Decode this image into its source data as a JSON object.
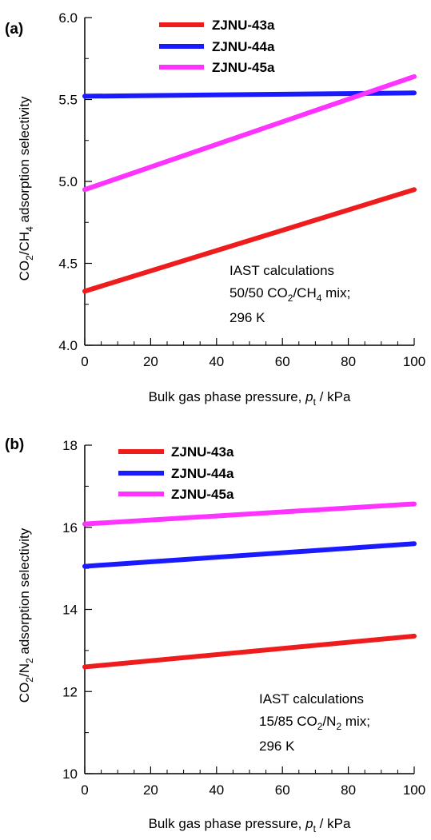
{
  "chart_data": [
    {
      "panel_label": "(a)",
      "type": "line",
      "xlabel": "Bulk gas phase pressure, p_t / kPa",
      "xlabel_parts": {
        "pre": "Bulk gas phase pressure, ",
        "var": "p",
        "sub": "t",
        "post": " / kPa"
      },
      "ylabel": "CO2/CH4 adsorption selectivity",
      "ylabel_parts": {
        "a": "CO",
        "a_sub": "2",
        "b": "/CH",
        "b_sub": "4",
        "c": " adsorption selectivity"
      },
      "xlim": [
        0,
        100
      ],
      "ylim": [
        4.0,
        6.0
      ],
      "xticks": [
        "0",
        "20",
        "40",
        "60",
        "80",
        "100"
      ],
      "yticks": [
        "4.0",
        "4.5",
        "5.0",
        "5.5",
        "6.0"
      ],
      "series": [
        {
          "name": "ZJNU-43a",
          "color": "#ee1c1c",
          "x": [
            0,
            100
          ],
          "y": [
            4.33,
            4.95
          ]
        },
        {
          "name": "ZJNU-44a",
          "color": "#1a1aff",
          "x": [
            0,
            100
          ],
          "y": [
            5.52,
            5.54
          ]
        },
        {
          "name": "ZJNU-45a",
          "color": "#ff33ff",
          "x": [
            0,
            100
          ],
          "y": [
            4.95,
            5.64
          ]
        }
      ],
      "annotation": {
        "line1": "IAST calculations",
        "line2_pre": "50/50 CO",
        "line2_sub1": "2",
        "line2_mid": "/CH",
        "line2_sub2": "4",
        "line2_post": " mix;",
        "line3": "296 K"
      },
      "legend_position": "top-center"
    },
    {
      "panel_label": "(b)",
      "type": "line",
      "xlabel": "Bulk gas phase pressure, p_t / kPa",
      "xlabel_parts": {
        "pre": "Bulk gas phase pressure, ",
        "var": "p",
        "sub": "t",
        "post": " / kPa"
      },
      "ylabel": "CO2/N2 adsorption selectivity",
      "ylabel_parts": {
        "a": "CO",
        "a_sub": "2",
        "b": "/N",
        "b_sub": "2",
        "c": " adsorption selectivity"
      },
      "xlim": [
        0,
        100
      ],
      "ylim": [
        10,
        18
      ],
      "xticks": [
        "0",
        "20",
        "40",
        "60",
        "80",
        "100"
      ],
      "yticks": [
        "10",
        "12",
        "14",
        "16",
        "18"
      ],
      "series": [
        {
          "name": "ZJNU-43a",
          "color": "#ee1c1c",
          "x": [
            0,
            100
          ],
          "y": [
            12.6,
            13.35
          ]
        },
        {
          "name": "ZJNU-44a",
          "color": "#1a1aff",
          "x": [
            0,
            100
          ],
          "y": [
            15.05,
            15.6
          ]
        },
        {
          "name": "ZJNU-45a",
          "color": "#ff33ff",
          "x": [
            0,
            100
          ],
          "y": [
            16.08,
            16.57
          ]
        }
      ],
      "annotation": {
        "line1": "IAST calculations",
        "line2_pre": "15/85 CO",
        "line2_sub1": "2",
        "line2_mid": "/N",
        "line2_sub2": "2",
        "line2_post": " mix;",
        "line3": "296 K"
      },
      "legend_position": "top-left"
    }
  ]
}
